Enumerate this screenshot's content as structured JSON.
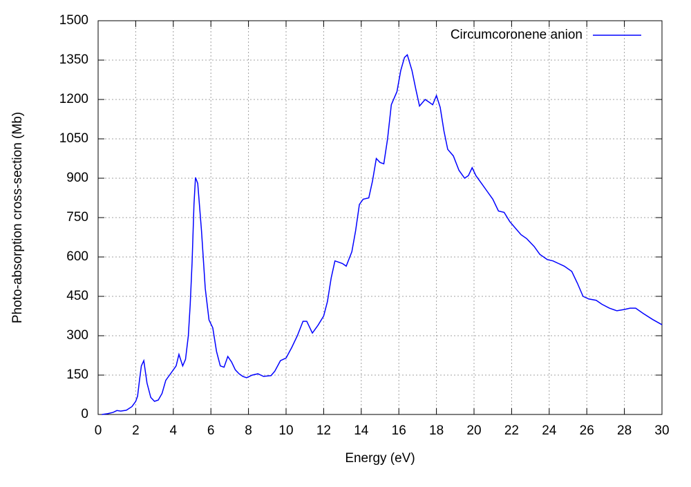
{
  "chart_data": {
    "type": "line",
    "x_label": "Energy (eV)",
    "y_label": "Photo-absorption cross-section (Mb)",
    "x": [
      0.2,
      0.5,
      0.8,
      1.0,
      1.2,
      1.5,
      1.8,
      2.0,
      2.1,
      2.2,
      2.3,
      2.43,
      2.6,
      2.8,
      3.0,
      3.2,
      3.4,
      3.6,
      3.8,
      4.0,
      4.15,
      4.3,
      4.5,
      4.65,
      4.8,
      4.9,
      5.0,
      5.1,
      5.18,
      5.3,
      5.5,
      5.7,
      5.9,
      6.1,
      6.3,
      6.5,
      6.7,
      6.9,
      7.1,
      7.3,
      7.5,
      7.7,
      7.9,
      8.2,
      8.5,
      8.8,
      9.2,
      9.4,
      9.7,
      10.0,
      10.3,
      10.6,
      10.9,
      11.1,
      11.4,
      11.7,
      12.0,
      12.2,
      12.4,
      12.6,
      12.8,
      13.0,
      13.2,
      13.5,
      13.7,
      13.9,
      14.1,
      14.4,
      14.6,
      14.8,
      15.0,
      15.2,
      15.4,
      15.6,
      15.9,
      16.1,
      16.3,
      16.45,
      16.7,
      16.9,
      17.1,
      17.4,
      17.6,
      17.8,
      18.0,
      18.2,
      18.4,
      18.6,
      18.9,
      19.2,
      19.5,
      19.7,
      19.9,
      20.1,
      20.4,
      20.7,
      21.0,
      21.3,
      21.6,
      21.9,
      22.2,
      22.5,
      22.8,
      23.2,
      23.5,
      23.9,
      24.2,
      24.5,
      24.8,
      25.2,
      25.5,
      25.8,
      26.1,
      26.5,
      26.8,
      27.2,
      27.6,
      28.0,
      28.3,
      28.6,
      29.0,
      29.5,
      30.0
    ],
    "series": [
      {
        "name": "Circumcoronene anion",
        "color": "#0000ff",
        "values": [
          0,
          3,
          8,
          15,
          13,
          16,
          30,
          50,
          70,
          130,
          185,
          205,
          120,
          65,
          50,
          55,
          80,
          130,
          150,
          170,
          185,
          229,
          185,
          210,
          300,
          420,
          580,
          800,
          903,
          880,
          700,
          480,
          360,
          330,
          240,
          185,
          180,
          221,
          200,
          170,
          155,
          145,
          140,
          150,
          155,
          145,
          148,
          165,
          205,
          215,
          255,
          300,
          355,
          355,
          310,
          340,
          375,
          430,
          520,
          585,
          580,
          575,
          565,
          620,
          700,
          800,
          820,
          825,
          890,
          975,
          960,
          955,
          1050,
          1180,
          1230,
          1310,
          1360,
          1370,
          1310,
          1240,
          1175,
          1200,
          1190,
          1180,
          1215,
          1170,
          1080,
          1010,
          985,
          930,
          900,
          910,
          940,
          910,
          880,
          850,
          820,
          775,
          770,
          735,
          710,
          685,
          670,
          640,
          610,
          590,
          585,
          575,
          565,
          545,
          500,
          450,
          440,
          435,
          420,
          405,
          395,
          400,
          405,
          405,
          385,
          362,
          342
        ]
      }
    ],
    "xlim": [
      0,
      30
    ],
    "xticks": [
      0,
      2,
      4,
      6,
      8,
      10,
      12,
      14,
      16,
      18,
      20,
      22,
      24,
      26,
      28,
      30
    ],
    "ylim": [
      0,
      1500
    ],
    "yticks": [
      0,
      150,
      300,
      450,
      600,
      750,
      900,
      1050,
      1200,
      1350,
      1500
    ],
    "grid": true,
    "legend": "top-right"
  }
}
